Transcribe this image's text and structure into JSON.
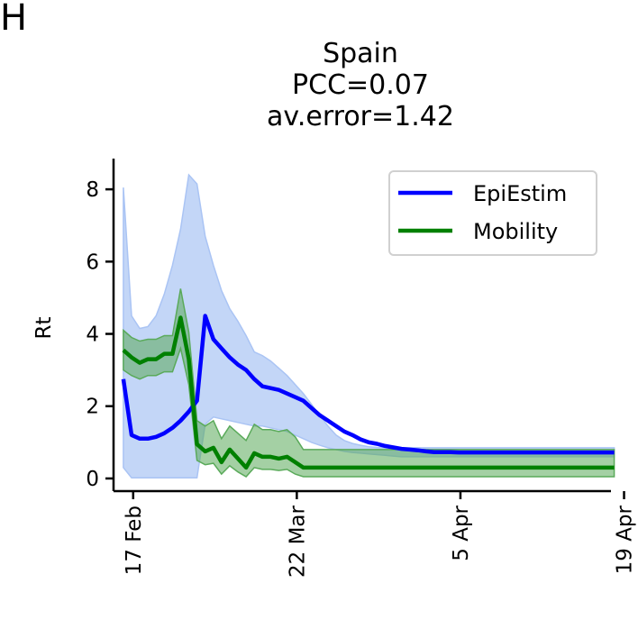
{
  "panel_letter": "H",
  "chart_data": {
    "type": "line",
    "title": [
      "Spain",
      "PCC=0.07",
      "av.error=1.42"
    ],
    "xlabel": "",
    "ylabel": "Rt",
    "xlim": [
      -1.2,
      59.6
    ],
    "ylim": [
      -0.35,
      8.85
    ],
    "yticks": [
      0,
      2,
      4,
      6,
      8
    ],
    "xticks": [
      {
        "value": 1.2,
        "label": "17 Feb"
      },
      {
        "value": 21.2,
        "label": "22 Mar"
      },
      {
        "value": 41.2,
        "label": "5 Apr"
      },
      {
        "value": 61.2,
        "label": "19 Apr"
      }
    ],
    "legend": {
      "position": "top-right"
    },
    "grid": false,
    "series": [
      {
        "name": "EpiEstim",
        "color": "#0000ff",
        "band_color": "#aac4f4",
        "x": [
          0,
          1,
          2,
          3,
          4,
          5,
          6,
          7,
          8,
          9,
          10,
          11,
          12,
          13,
          14,
          15,
          16,
          17,
          18,
          19,
          20,
          21,
          22,
          23,
          24,
          25,
          26,
          27,
          28,
          29,
          30,
          31,
          32,
          33,
          34,
          35,
          36,
          37,
          38,
          39,
          40,
          41,
          42,
          43,
          44,
          45,
          46,
          47,
          48,
          49,
          50,
          51,
          52,
          53,
          54,
          55,
          56,
          57,
          58,
          59,
          60
        ],
        "y": [
          2.75,
          1.2,
          1.1,
          1.1,
          1.15,
          1.25,
          1.4,
          1.6,
          1.85,
          2.15,
          4.5,
          3.85,
          3.6,
          3.35,
          3.15,
          3.0,
          2.75,
          2.55,
          2.5,
          2.45,
          2.35,
          2.25,
          2.15,
          1.95,
          1.75,
          1.6,
          1.45,
          1.3,
          1.2,
          1.08,
          1.0,
          0.96,
          0.9,
          0.86,
          0.82,
          0.8,
          0.78,
          0.75,
          0.73,
          0.73,
          0.73,
          0.72,
          0.72,
          0.72,
          0.72,
          0.72,
          0.72,
          0.72,
          0.72,
          0.72,
          0.72,
          0.72,
          0.72,
          0.72,
          0.72,
          0.72,
          0.72,
          0.72,
          0.72,
          0.72,
          0.72
        ],
        "lower": [
          0.3,
          0.02,
          0.02,
          0.02,
          0.02,
          0.02,
          0.02,
          0.02,
          0.02,
          0.02,
          1.5,
          1.7,
          1.65,
          1.6,
          1.55,
          1.5,
          1.45,
          1.45,
          1.4,
          1.35,
          1.3,
          1.2,
          1.1,
          1.0,
          0.92,
          0.85,
          0.8,
          0.75,
          0.72,
          0.7,
          0.68,
          0.66,
          0.64,
          0.62,
          0.6,
          0.6,
          0.6,
          0.6,
          0.6,
          0.6,
          0.6,
          0.6,
          0.6,
          0.6,
          0.6,
          0.6,
          0.6,
          0.6,
          0.6,
          0.6,
          0.6,
          0.6,
          0.6,
          0.6,
          0.6,
          0.6,
          0.6,
          0.6,
          0.6,
          0.6,
          0.6
        ],
        "upper": [
          8.05,
          4.5,
          4.15,
          4.2,
          4.5,
          5.1,
          5.9,
          6.9,
          8.4,
          8.15,
          6.7,
          5.9,
          5.2,
          4.7,
          4.35,
          3.95,
          3.5,
          3.4,
          3.25,
          3.05,
          2.85,
          2.6,
          2.35,
          2.05,
          1.75,
          1.45,
          1.2,
          1.05,
          0.97,
          0.92,
          0.88,
          0.86,
          0.85,
          0.85,
          0.85,
          0.85,
          0.85,
          0.85,
          0.85,
          0.85,
          0.85,
          0.85,
          0.85,
          0.85,
          0.85,
          0.85,
          0.85,
          0.85,
          0.85,
          0.85,
          0.85,
          0.85,
          0.85,
          0.85,
          0.85,
          0.85,
          0.85,
          0.85,
          0.85,
          0.85,
          0.85
        ]
      },
      {
        "name": "Mobility",
        "color": "#008000",
        "band_color": "#5aaa5a",
        "x": [
          0,
          1,
          2,
          3,
          4,
          5,
          6,
          7,
          8,
          9,
          10,
          11,
          12,
          13,
          14,
          15,
          16,
          17,
          18,
          19,
          20,
          21,
          22,
          23,
          24,
          25,
          26,
          27,
          28,
          29,
          30,
          31,
          32,
          33,
          34,
          35,
          36,
          37,
          38,
          39,
          40,
          41,
          42,
          43,
          44,
          45,
          46,
          47,
          48,
          49,
          50,
          51,
          52,
          53,
          54,
          55,
          56,
          57,
          58,
          59,
          60
        ],
        "y": [
          3.55,
          3.35,
          3.2,
          3.3,
          3.3,
          3.45,
          3.45,
          4.45,
          3.3,
          0.95,
          0.75,
          0.85,
          0.45,
          0.8,
          0.55,
          0.3,
          0.7,
          0.6,
          0.6,
          0.55,
          0.6,
          0.45,
          0.3,
          0.3,
          0.3,
          0.3,
          0.3,
          0.3,
          0.3,
          0.3,
          0.3,
          0.3,
          0.3,
          0.3,
          0.3,
          0.3,
          0.3,
          0.3,
          0.3,
          0.3,
          0.3,
          0.3,
          0.3,
          0.3,
          0.3,
          0.3,
          0.3,
          0.3,
          0.3,
          0.3,
          0.3,
          0.3,
          0.3,
          0.3,
          0.3,
          0.3,
          0.3,
          0.3,
          0.3,
          0.3,
          0.3
        ],
        "lower": [
          3.0,
          2.85,
          2.75,
          2.85,
          2.85,
          2.95,
          2.95,
          3.6,
          2.6,
          0.5,
          0.38,
          0.42,
          0.12,
          0.35,
          0.18,
          0.05,
          0.3,
          0.25,
          0.25,
          0.22,
          0.25,
          0.12,
          0.05,
          0.05,
          0.05,
          0.05,
          0.05,
          0.05,
          0.05,
          0.05,
          0.05,
          0.05,
          0.05,
          0.05,
          0.05,
          0.05,
          0.05,
          0.05,
          0.05,
          0.05,
          0.05,
          0.05,
          0.05,
          0.05,
          0.05,
          0.05,
          0.05,
          0.05,
          0.05,
          0.05,
          0.05,
          0.05,
          0.05,
          0.05,
          0.05,
          0.05,
          0.05,
          0.05,
          0.05,
          0.05,
          0.05
        ],
        "upper": [
          4.1,
          3.9,
          3.8,
          3.85,
          3.85,
          3.95,
          3.95,
          5.25,
          4.05,
          1.6,
          1.45,
          1.6,
          1.1,
          1.45,
          1.25,
          1.05,
          1.5,
          1.35,
          1.35,
          1.3,
          1.35,
          1.15,
          0.8,
          0.8,
          0.8,
          0.8,
          0.8,
          0.8,
          0.8,
          0.8,
          0.8,
          0.8,
          0.8,
          0.8,
          0.8,
          0.8,
          0.8,
          0.8,
          0.8,
          0.8,
          0.8,
          0.8,
          0.8,
          0.8,
          0.8,
          0.8,
          0.8,
          0.8,
          0.8,
          0.8,
          0.8,
          0.8,
          0.8,
          0.8,
          0.8,
          0.8,
          0.8,
          0.8,
          0.8,
          0.8,
          0.8
        ]
      }
    ]
  }
}
